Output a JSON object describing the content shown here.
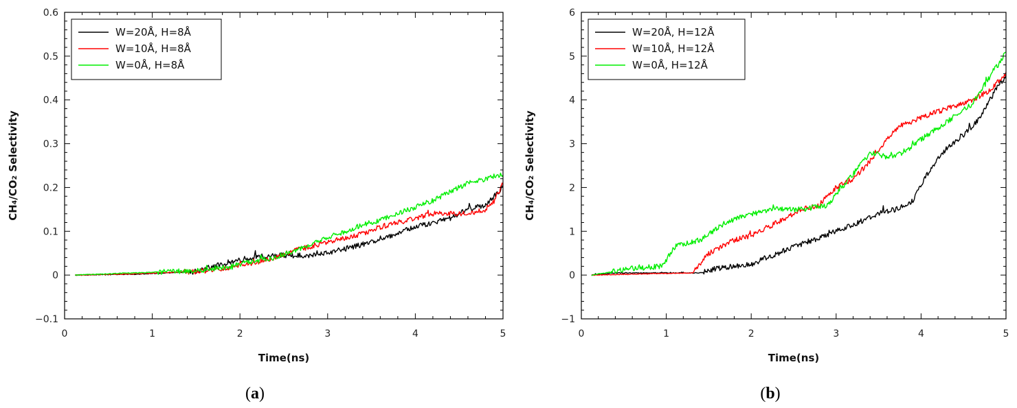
{
  "chart_data": [
    {
      "type": "line",
      "panel_label": {
        "open": "(",
        "letter": "a",
        "close": ")"
      },
      "xlabel": "Time(ns)",
      "ylabel": "CH₄/CO₂ Selectivity",
      "xlim": [
        0,
        5
      ],
      "ylim": [
        -0.1,
        0.6
      ],
      "xticks": [
        0,
        1,
        2,
        3,
        4,
        5
      ],
      "xtick_labels": [
        "0",
        "1",
        "2",
        "3",
        "4",
        "5"
      ],
      "yticks": [
        -0.1,
        0,
        0.1,
        0.2,
        0.3,
        0.4,
        0.5,
        0.6
      ],
      "ytick_labels": [
        "−0.1",
        "0",
        "0.1",
        "0.2",
        "0.3",
        "0.4",
        "0.5",
        "0.6"
      ],
      "grid": false,
      "legend_position": "top-left",
      "noise": 0.006,
      "series": [
        {
          "name": "W=20Å, H=8Å",
          "color": "#000000",
          "x": [
            0.12,
            0.8,
            1.2,
            1.5,
            1.7,
            1.9,
            2.1,
            2.4,
            2.6,
            2.8,
            3.0,
            3.2,
            3.4,
            3.6,
            3.8,
            4.0,
            4.2,
            4.4,
            4.6,
            4.8,
            4.9,
            5.0
          ],
          "y": [
            0,
            0.002,
            0.005,
            0.008,
            0.02,
            0.03,
            0.04,
            0.045,
            0.045,
            0.045,
            0.05,
            0.06,
            0.07,
            0.08,
            0.095,
            0.11,
            0.12,
            0.13,
            0.15,
            0.16,
            0.18,
            0.2
          ]
        },
        {
          "name": "W=10Å, H=8Å",
          "color": "#ff0000",
          "x": [
            0.12,
            0.8,
            1.2,
            1.5,
            1.7,
            1.9,
            2.1,
            2.4,
            2.6,
            2.8,
            3.0,
            3.2,
            3.4,
            3.6,
            3.8,
            4.0,
            4.2,
            4.4,
            4.6,
            4.8,
            4.9,
            5.0
          ],
          "y": [
            0,
            0.003,
            0.006,
            0.008,
            0.012,
            0.018,
            0.025,
            0.04,
            0.055,
            0.065,
            0.075,
            0.085,
            0.095,
            0.11,
            0.12,
            0.13,
            0.14,
            0.14,
            0.14,
            0.15,
            0.17,
            0.21
          ]
        },
        {
          "name": "W=0Å, H=8Å",
          "color": "#00ee00",
          "x": [
            0.12,
            0.8,
            1.2,
            1.5,
            1.7,
            1.9,
            2.1,
            2.4,
            2.6,
            2.8,
            3.0,
            3.2,
            3.4,
            3.6,
            3.8,
            4.0,
            4.2,
            4.4,
            4.6,
            4.8,
            4.9,
            5.0
          ],
          "y": [
            0,
            0.005,
            0.008,
            0.01,
            0.015,
            0.02,
            0.03,
            0.04,
            0.055,
            0.07,
            0.085,
            0.1,
            0.115,
            0.125,
            0.14,
            0.155,
            0.17,
            0.19,
            0.21,
            0.22,
            0.225,
            0.23
          ]
        }
      ]
    },
    {
      "type": "line",
      "panel_label": {
        "open": "(",
        "letter": "b",
        "close": ")"
      },
      "xlabel": "Time(ns)",
      "ylabel": "CH₄/CO₂ Selectivity",
      "xlim": [
        0,
        5
      ],
      "ylim": [
        -1,
        6
      ],
      "xticks": [
        0,
        1,
        2,
        3,
        4,
        5
      ],
      "xtick_labels": [
        "0",
        "1",
        "2",
        "3",
        "4",
        "5"
      ],
      "yticks": [
        -1,
        0,
        1,
        2,
        3,
        4,
        5,
        6
      ],
      "ytick_labels": [
        "−1",
        "0",
        "1",
        "2",
        "3",
        "4",
        "5",
        "6"
      ],
      "grid": false,
      "legend_position": "top-left",
      "noise": 0.06,
      "series": [
        {
          "name": "W=20Å, H=12Å",
          "color": "#000000",
          "x": [
            0.12,
            0.4,
            1.4,
            1.6,
            2.0,
            2.2,
            2.5,
            2.8,
            3.0,
            3.2,
            3.5,
            3.7,
            3.9,
            4.1,
            4.3,
            4.5,
            4.7,
            4.9,
            5.0
          ],
          "y": [
            0,
            0.05,
            0.05,
            0.15,
            0.25,
            0.4,
            0.65,
            0.85,
            1.0,
            1.15,
            1.4,
            1.5,
            1.7,
            2.4,
            2.9,
            3.2,
            3.6,
            4.3,
            4.5
          ]
        },
        {
          "name": "W=10Å, H=12Å",
          "color": "#ff0000",
          "x": [
            0.12,
            0.6,
            1.3,
            1.5,
            1.8,
            2.0,
            2.3,
            2.6,
            2.8,
            3.0,
            3.2,
            3.4,
            3.6,
            3.75,
            4.0,
            4.3,
            4.6,
            4.8,
            5.0
          ],
          "y": [
            0,
            0.02,
            0.05,
            0.5,
            0.8,
            0.9,
            1.2,
            1.5,
            1.6,
            2.0,
            2.2,
            2.6,
            3.1,
            3.4,
            3.6,
            3.8,
            4.0,
            4.2,
            4.6
          ]
        },
        {
          "name": "W=0Å, H=12Å",
          "color": "#00ee00",
          "x": [
            0.12,
            0.6,
            0.95,
            1.1,
            1.4,
            1.7,
            2.0,
            2.3,
            2.6,
            2.9,
            3.2,
            3.4,
            3.6,
            3.8,
            4.0,
            4.3,
            4.6,
            4.8,
            5.0
          ],
          "y": [
            0,
            0.15,
            0.2,
            0.65,
            0.8,
            1.2,
            1.4,
            1.5,
            1.5,
            1.6,
            2.3,
            2.8,
            2.7,
            2.8,
            3.1,
            3.5,
            3.9,
            4.5,
            5.1
          ]
        }
      ]
    }
  ]
}
